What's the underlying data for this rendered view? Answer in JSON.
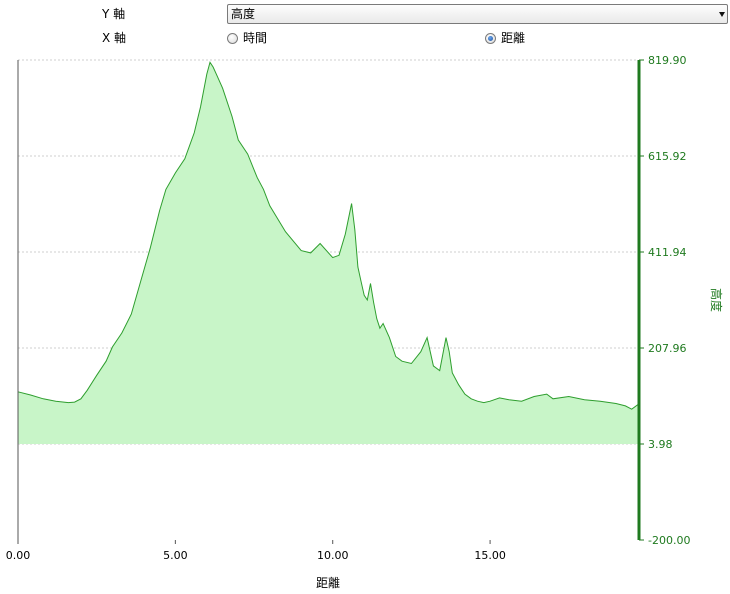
{
  "controls": {
    "y_axis_label": "Y 軸",
    "x_axis_label": "X 軸",
    "y_select_value": "高度",
    "x_options": [
      {
        "label": "時間",
        "selected": false
      },
      {
        "label": "距離",
        "selected": true
      }
    ]
  },
  "chart_data": {
    "type": "area",
    "xlabel": "距離",
    "ylabel": "高度",
    "xlim": [
      0,
      19.7
    ],
    "ylim": [
      -200.0,
      819.9
    ],
    "x_ticks": [
      "0.00",
      "5.00",
      "10.00",
      "15.00"
    ],
    "x_tick_values": [
      0,
      5,
      10,
      15
    ],
    "y_ticks": [
      "819.90",
      "615.92",
      "411.94",
      "207.96",
      "3.98",
      "-200.00"
    ],
    "y_tick_values": [
      819.9,
      615.92,
      411.94,
      207.96,
      3.98,
      -200.0
    ],
    "baseline": 3.98,
    "grid": true,
    "line_color": "#2e9e2e",
    "fill_color": "#c8f5c8",
    "axis_color": "#1f7a1f",
    "series": [
      {
        "x": [
          0,
          0.4,
          0.8,
          1.2,
          1.6,
          1.8,
          2.0,
          2.2,
          2.5,
          2.8,
          3.0,
          3.3,
          3.6,
          3.9,
          4.2,
          4.5,
          4.7,
          5.0,
          5.3,
          5.6,
          5.8,
          6.0,
          6.1,
          6.2,
          6.3,
          6.5,
          6.8,
          7.0,
          7.3,
          7.6,
          7.8,
          8.0,
          8.5,
          9.0,
          9.3,
          9.6,
          10.0,
          10.2,
          10.4,
          10.6,
          10.7,
          10.8,
          10.9,
          11.0,
          11.1,
          11.2,
          11.3,
          11.4,
          11.5,
          11.6,
          11.8,
          12.0,
          12.2,
          12.5,
          12.8,
          13.0,
          13.2,
          13.4,
          13.6,
          13.7,
          13.8,
          14.0,
          14.2,
          14.4,
          14.6,
          14.8,
          15.0,
          15.3,
          15.6,
          16.0,
          16.4,
          16.8,
          17.0,
          17.5,
          18.0,
          18.5,
          19.0,
          19.3,
          19.5,
          19.7
        ],
        "values": [
          115,
          108,
          100,
          95,
          92,
          93,
          100,
          118,
          150,
          180,
          210,
          240,
          280,
          350,
          420,
          500,
          545,
          580,
          610,
          665,
          720,
          790,
          815,
          805,
          790,
          760,
          700,
          650,
          620,
          570,
          545,
          510,
          455,
          415,
          410,
          430,
          400,
          405,
          450,
          515,
          460,
          380,
          350,
          320,
          310,
          345,
          305,
          270,
          250,
          260,
          230,
          190,
          180,
          175,
          200,
          230,
          170,
          160,
          230,
          200,
          155,
          130,
          110,
          100,
          95,
          92,
          95,
          102,
          98,
          95,
          105,
          110,
          100,
          105,
          98,
          95,
          90,
          85,
          78,
          88
        ]
      }
    ]
  }
}
